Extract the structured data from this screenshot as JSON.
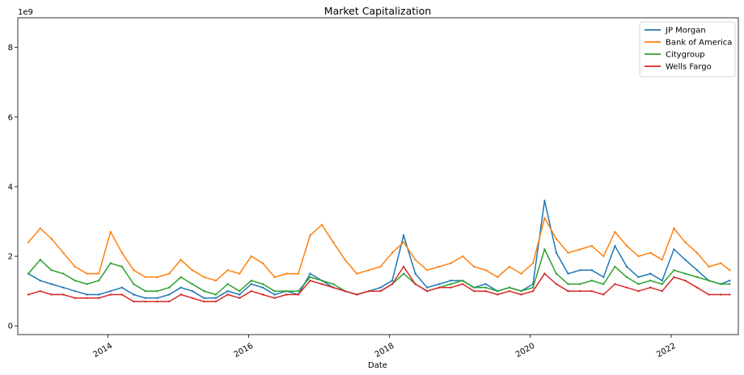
{
  "chart_data": {
    "type": "line",
    "title": "Market Capitalization",
    "xlabel": "Date",
    "ylabel": "",
    "y_offset_label": "1e9",
    "xlim": [
      "2012-09-21",
      "2022-12-15"
    ],
    "ylim": [
      -0.25,
      8.85
    ],
    "x_ticks": [
      "2014-01-01",
      "2016-01-01",
      "2018-01-01",
      "2020-01-01",
      "2022-01-01"
    ],
    "x_tick_labels": [
      "2014",
      "2016",
      "2018",
      "2020",
      "2022"
    ],
    "y_ticks": [
      0,
      2,
      4,
      6,
      8
    ],
    "y_tick_labels": [
      "0",
      "2",
      "4",
      "6",
      "8"
    ],
    "grid": false,
    "legend_position": "top-right",
    "x": [
      "2012-11-15",
      "2013-01-15",
      "2013-03-15",
      "2013-05-15",
      "2013-07-15",
      "2013-09-15",
      "2013-11-15",
      "2014-01-15",
      "2014-03-15",
      "2014-05-15",
      "2014-07-15",
      "2014-09-15",
      "2014-11-15",
      "2015-01-15",
      "2015-03-15",
      "2015-05-15",
      "2015-07-15",
      "2015-09-15",
      "2015-11-15",
      "2016-01-15",
      "2016-03-15",
      "2016-05-15",
      "2016-07-15",
      "2016-09-15",
      "2016-11-15",
      "2017-01-15",
      "2017-03-15",
      "2017-05-15",
      "2017-07-15",
      "2017-09-15",
      "2017-11-15",
      "2018-01-15",
      "2018-03-15",
      "2018-05-15",
      "2018-07-15",
      "2018-09-15",
      "2018-11-15",
      "2019-01-15",
      "2019-03-15",
      "2019-05-15",
      "2019-07-15",
      "2019-09-15",
      "2019-11-15",
      "2020-01-15",
      "2020-03-15",
      "2020-05-15",
      "2020-07-15",
      "2020-09-15",
      "2020-11-15",
      "2021-01-15",
      "2021-03-15",
      "2021-05-15",
      "2021-07-15",
      "2021-09-15",
      "2021-11-15",
      "2022-01-15",
      "2022-03-15",
      "2022-05-15",
      "2022-07-15",
      "2022-09-15",
      "2022-10-31"
    ],
    "series": [
      {
        "name": "JP Morgan",
        "color": "#1f77b4",
        "values": [
          1.5,
          1.3,
          1.2,
          1.1,
          1.0,
          0.9,
          0.9,
          1.0,
          1.1,
          0.9,
          0.8,
          0.8,
          0.9,
          1.1,
          1.0,
          0.8,
          0.8,
          1.0,
          0.9,
          1.2,
          1.1,
          0.9,
          1.0,
          0.9,
          1.5,
          1.3,
          1.1,
          1.0,
          0.9,
          1.0,
          1.1,
          1.3,
          2.6,
          1.5,
          1.1,
          1.2,
          1.3,
          1.3,
          1.1,
          1.2,
          1.0,
          1.1,
          1.0,
          1.2,
          3.6,
          2.1,
          1.5,
          1.6,
          1.6,
          1.4,
          2.3,
          1.7,
          1.4,
          1.5,
          1.3,
          2.2,
          1.9,
          1.6,
          1.3,
          1.2,
          1.3
        ]
      },
      {
        "name": "Bank of America",
        "color": "#ff7f0e",
        "values": [
          2.4,
          2.8,
          2.5,
          2.1,
          1.7,
          1.5,
          1.5,
          2.7,
          2.1,
          1.6,
          1.4,
          1.4,
          1.5,
          1.9,
          1.6,
          1.4,
          1.3,
          1.6,
          1.5,
          2.0,
          1.8,
          1.4,
          1.5,
          1.5,
          2.6,
          2.9,
          2.4,
          1.9,
          1.5,
          1.6,
          1.7,
          2.1,
          2.4,
          1.9,
          1.6,
          1.7,
          1.8,
          2.0,
          1.7,
          1.6,
          1.4,
          1.7,
          1.5,
          1.8,
          3.1,
          2.5,
          2.1,
          2.2,
          2.3,
          2.0,
          2.7,
          2.3,
          2.0,
          2.1,
          1.9,
          2.8,
          2.4,
          2.1,
          1.7,
          1.8,
          1.6
        ]
      },
      {
        "name": "Citygroup",
        "color": "#2ca02c",
        "values": [
          1.5,
          1.9,
          1.6,
          1.5,
          1.3,
          1.2,
          1.3,
          1.8,
          1.7,
          1.2,
          1.0,
          1.0,
          1.1,
          1.4,
          1.2,
          1.0,
          0.9,
          1.2,
          1.0,
          1.3,
          1.2,
          1.0,
          1.0,
          1.0,
          1.4,
          1.3,
          1.2,
          1.0,
          0.9,
          1.0,
          1.0,
          1.2,
          1.5,
          1.2,
          1.0,
          1.1,
          1.2,
          1.3,
          1.1,
          1.1,
          1.0,
          1.1,
          1.0,
          1.1,
          2.2,
          1.5,
          1.2,
          1.2,
          1.3,
          1.2,
          1.7,
          1.4,
          1.2,
          1.3,
          1.2,
          1.6,
          1.5,
          1.4,
          1.3,
          1.2,
          1.2
        ]
      },
      {
        "name": "Wells Fargo",
        "color": "#d62728",
        "values": [
          0.9,
          1.0,
          0.9,
          0.9,
          0.8,
          0.8,
          0.8,
          0.9,
          0.9,
          0.7,
          0.7,
          0.7,
          0.7,
          0.9,
          0.8,
          0.7,
          0.7,
          0.9,
          0.8,
          1.0,
          0.9,
          0.8,
          0.9,
          0.9,
          1.3,
          1.2,
          1.1,
          1.0,
          0.9,
          1.0,
          1.0,
          1.2,
          1.7,
          1.2,
          1.0,
          1.1,
          1.1,
          1.2,
          1.0,
          1.0,
          0.9,
          1.0,
          0.9,
          1.0,
          1.5,
          1.2,
          1.0,
          1.0,
          1.0,
          0.9,
          1.2,
          1.1,
          1.0,
          1.1,
          1.0,
          1.4,
          1.3,
          1.1,
          0.9,
          0.9,
          0.9
        ]
      }
    ]
  }
}
